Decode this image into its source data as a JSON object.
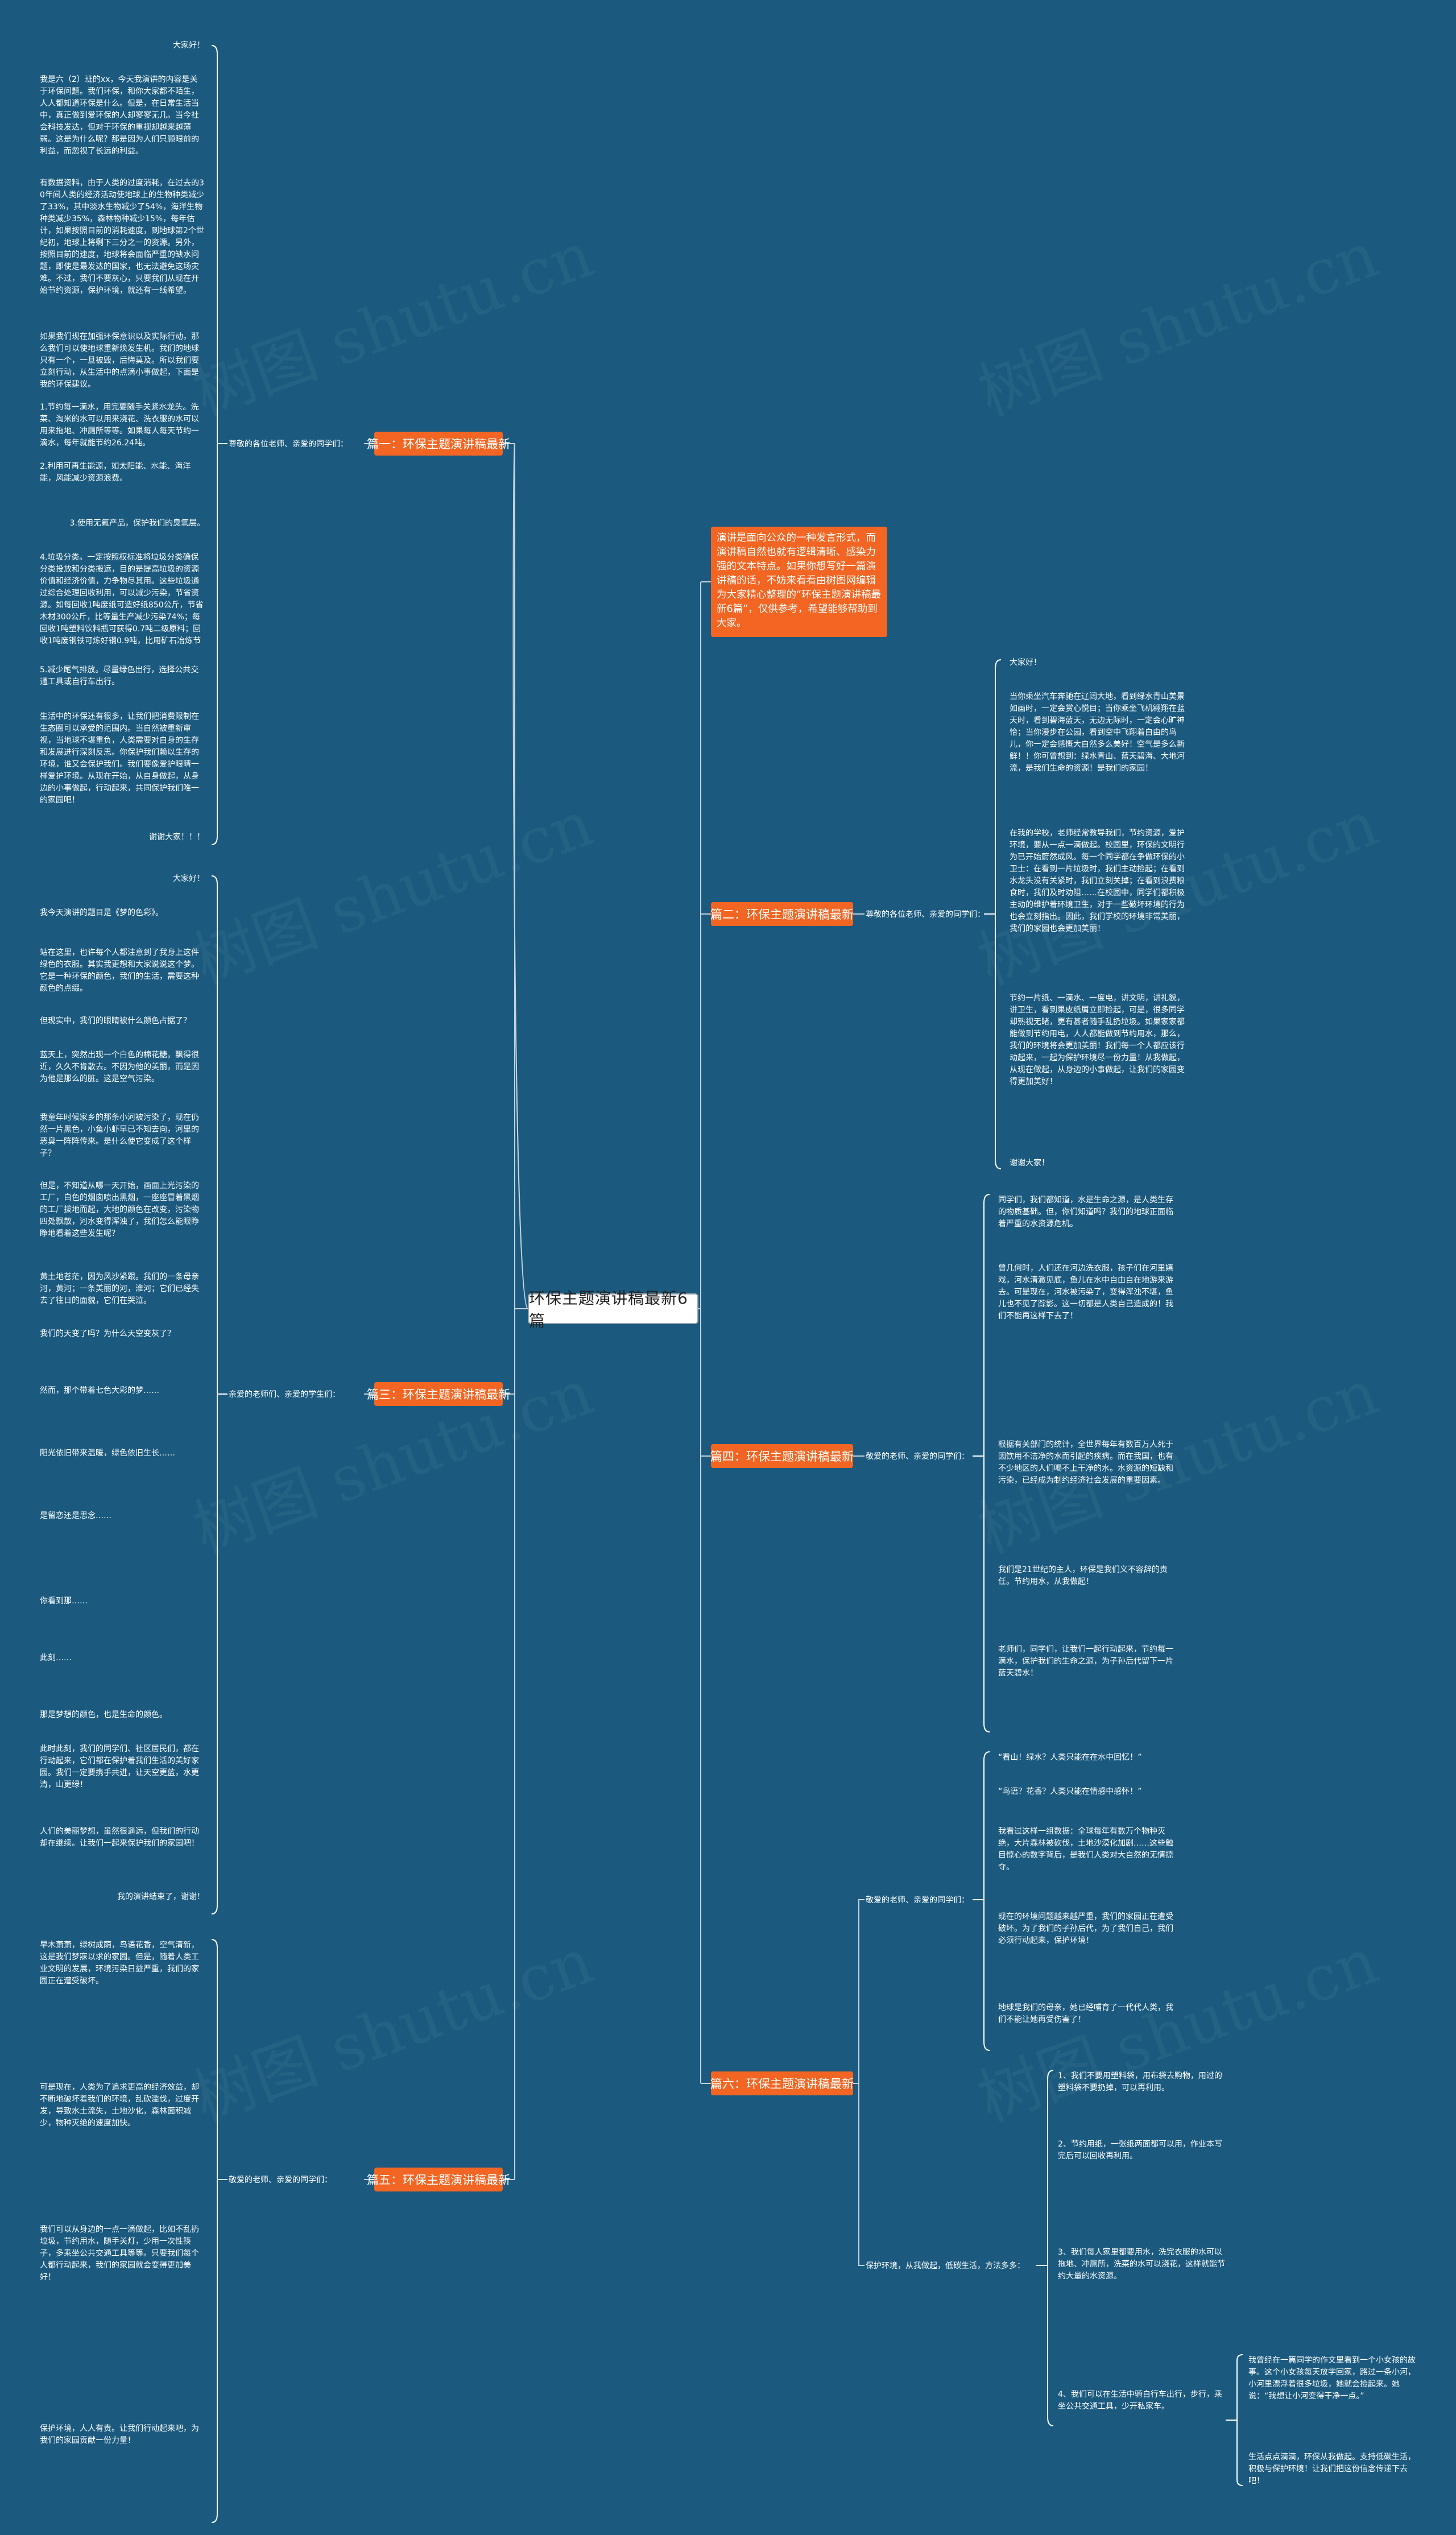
{
  "root": "环保主题演讲稿最新6篇",
  "summary": "演讲是面向公众的一种发言形式，而演讲稿自然也就有逻辑清晰、感染力强的文本特点。如果你想写好一篇演讲稿的话，不妨来看看由树图网编辑为大家精心整理的“环保主题演讲稿最新6篇”，仅供参考，希望能够帮助到大家。",
  "branches": {
    "b1": {
      "title": "篇一：环保主题演讲稿最新",
      "label": "尊敬的各位老师、亲爱的同学们：",
      "paras": [
        "大家好！",
        "我是六（2）班的xx，今天我演讲的内容是关于环保问题。我们环保，和你大家都不陌生，人人都知道环保是什么。但是，在日常生活当中，真正做到爱环保的人却寥寥无几。当今社会科技发达，但对于环保的重视却越来越薄弱。这是为什么呢？那是因为人们只顾眼前的利益，而忽视了长远的利益。",
        "有数据资料，由于人类的过度消耗，在过去的30年间人类的经济活动使地球上的生物种类减少了33%，其中淡水生物减少了54%，海洋生物种类减少35%，森林物种减少15%，每年估计，如果按照目前的消耗速度，到地球第2个世纪初，地球上将剩下三分之一的资源。另外，按照目前的速度，地球将会面临严重的缺水问题，即使是最发达的国家，也无法避免这场灾难。不过，我们不要灰心，只要我们从现在开始节约资源，保护环境，就还有一线希望。",
        "如果我们现在加强环保意识以及实际行动，那么我们可以使地球重新焕发生机。我们的地球只有一个，一旦被毁，后悔莫及。所以我们要立刻行动，从生活中的点滴小事做起，下面是我的环保建议。",
        "1.节约每一滴水，用完要随手关紧水龙头。洗菜、淘米的水可以用来浇花、洗衣服的水可以用来拖地、冲厕所等等。如果每人每天节约一滴水，每年就能节约26.24吨。",
        "2.利用可再生能源，如太阳能、水能、海洋能，风能减少资源浪费。",
        "3.使用无氟产品，保护我们的臭氧层。",
        "4.垃圾分类。一定按照权标准将垃圾分类确保分类投放和分类搬运，目的是提高垃圾的资源价值和经济价值，力争物尽其用。这些垃圾通过综合处理回收利用，可以减少污染，节省资源。如每回收1吨废纸可造好纸850公斤，节省木材300公斤，比等量生产减少污染74%；每回收1吨塑料饮料瓶可获得0.7吨二级原料；回收1吨废钢铁可炼好钢0.9吨，比用矿石冶炼节约成本47%，减少空气污染75%，减少97%的水污染和固体废物。",
        "5.减少尾气排放。尽量绿色出行，选择公共交通工具或自行车出行。",
        "生活中的环保还有很多，让我们把消费限制在生态圈可以承受的范围内。当自然被重新审视，当地球不堪重负，人类需要对自身的生存和发展进行深刻反思。你保护我们赖以生存的环境，谁又会保护我们。我们要像爱护眼睛一样爱护环境。从现在开始，从自身做起，从身边的小事做起，行动起来，共同保护我们唯一的家园吧！",
        "谢谢大家！！！"
      ]
    },
    "b2": {
      "title": "篇二：环保主题演讲稿最新",
      "label": "尊敬的各位老师、亲爱的同学们：",
      "paras": [
        "大家好！",
        "当你乘坐汽车奔驰在辽阔大地，看到绿水青山美景如画时，一定会赏心悦目；当你乘坐飞机翱翔在蓝天时，看到碧海蓝天，无边无际时，一定会心旷神怡；当你漫步在公园，看到空中飞翔着自由的鸟儿，你一定会感慨大自然多么美好！空气是多么新鲜！！你可曾想到：绿水青山、蓝天碧海、大地河流，是我们生命的资源！是我们的家园！",
        "在我的学校，老师经常教导我们，节约资源，爱护环境，要从一点一滴做起。校园里，环保的文明行为已开始蔚然成风。每一个同学都在争做环保的小卫士：在看到一片垃圾时，我们主动捡起；在看到水龙头没有关紧时，我们立刻关掉；在看到浪费粮食时，我们及时劝阻……在校园中，同学们都积极主动的维护着环境卫生，对于一些破坏环境的行为也会立刻指出。因此，我们学校的环境非常美丽，我们的家园也会更加美丽！",
        "节约一片纸、一滴水、一度电，讲文明，讲礼貌，讲卫生，看到果皮纸屑立即捡起，可是，很多同学却熟视无睹，更有甚者随手乱扔垃圾。如果家家都能做到节约用电，人人都能做到节约用水，那么，我们的环境将会更加美丽！我们每一个人都应该行动起来，一起为保护环境尽一份力量！从我做起，从现在做起，从身边的小事做起，让我们的家园变得更加美好！",
        "谢谢大家！"
      ]
    },
    "b3": {
      "title": "篇三：环保主题演讲稿最新",
      "label": "亲爱的老师们、亲爱的学生们：",
      "paras": [
        "大家好！",
        "我今天演讲的题目是《梦的色彩》。",
        "站在这里，也许每个人都注意到了我身上这件绿色的衣服。其实我更想和大家说说这个梦。它是一种环保的颜色，我们的生活，需要这种颜色的点缀。",
        "但现实中，我们的眼睛被什么颜色占据了？",
        "蓝天上，突然出现一个白色的棉花糖，飘得很近，久久不肯散去。不因为他的美丽，而是因为他是那么的脏。这是空气污染。",
        "我童年时候家乡的那条小河被污染了，现在仍然一片黑色，小鱼小虾早已不知去向，河里的恶臭一阵阵传来。是什么使它变成了这个样子？",
        "但是，不知道从哪一天开始，画面上光污染的工厂，白色的烟囱喷出黑烟，一座座冒着黑烟的工厂拔地而起，大地的颜色在改变，污染物四处飘散，河水变得浑浊了，我们怎么能眼睁睁地看着这些发生呢？",
        "黄土地苍茫，因为风沙紧跟。我们的一条母亲河，黄河；一条美丽的河，淮河；它们已经失去了往日的面貌，它们在哭泣。",
        "我们的天变了吗？为什么天空变灰了？",
        "然而，那个带着七色大彩的梦……",
        "阳光依旧带来温暖，绿色依旧生长……",
        "是留恋还是思念……",
        "你看到那……",
        "此刻……",
        "那是梦想的颜色，也是生命的颜色。",
        "此时此刻，我们的同学们、社区居民们，都在行动起来，它们都在保护着我们生活的美好家园。我们一定要携手共进，让天空更蓝，水更清，山更绿！",
        "人们的美丽梦想，虽然很遥远，但我们的行动却在继续。让我们一起来保护我们的家园吧！",
        "我的演讲结束了，谢谢！"
      ]
    },
    "b4": {
      "title": "篇四：环保主题演讲稿最新",
      "label": "敬爱的老师、亲爱的同学们：",
      "paras": [
        "同学们，我们都知道，水是生命之源，是人类生存的物质基础。但，你们知道吗？我们的地球正面临着严重的水资源危机。",
        "曾几何时，人们还在河边洗衣服，孩子们在河里嬉戏，河水清澈见底，鱼儿在水中自由自在地游来游去。可是现在，河水被污染了，变得浑浊不堪，鱼儿也不见了踪影。这一切都是人类自己造成的！我们不能再这样下去了！",
        "根据有关部门的统计，全世界每年有数百万人死于因饮用不洁净的水而引起的疾病。而在我国，也有不少地区的人们喝不上干净的水。水资源的短缺和污染，已经成为制约经济社会发展的重要因素。",
        "我们是21世纪的主人，环保是我们义不容辞的责任。节约用水，从我做起！",
        "老师们，同学们，让我们一起行动起来，节约每一滴水，保护我们的生命之源，为子孙后代留下一片蓝天碧水！"
      ]
    },
    "b5": {
      "title": "篇五：环保主题演讲稿最新",
      "label": "敬爱的老师、亲爱的同学们：",
      "paras": [
        "早木萧萧，绿树成荫，鸟语花香，空气清新，这是我们梦寐以求的家园。但是，随着人类工业文明的发展，环境污染日益严重，我们的家园正在遭受破坏。",
        "可是现在，人类为了追求更高的经济效益，却不断地破坏着我们的环境，乱砍滥伐，过度开发，导致水土流失，土地沙化，森林面积减少，物种灭绝的速度加快。",
        "我们可以从身边的一点一滴做起，比如不乱扔垃圾，节约用水，随手关灯，少用一次性筷子，多乘坐公共交通工具等等。只要我们每个人都行动起来，我们的家园就会变得更加美好！",
        "保护环境，人人有责。让我们行动起来吧，为我们的家园贡献一份力量！"
      ]
    },
    "b6": {
      "title": "篇六：环保主题演讲稿最新",
      "label": "敬爱的老师、亲爱的同学们：",
      "sub_label": "保护环境，从我做起，低碳生活，方法多多：",
      "paras": [
        "“看山！绿水？人类只能在在水中回忆！”",
        "“鸟语？花香？人类只能在情感中感怀！”",
        "我看过这样一组数据：全球每年有数万个物种灭绝，大片森林被砍伐，土地沙漠化加剧……这些触目惊心的数字背后，是我们人类对大自然的无情掠夺。",
        "现在的环境问题越来越严重，我们的家园正在遭受破坏。为了我们的子孙后代，为了我们自己，我们必须行动起来，保护环境！",
        "地球是我们的母亲，她已经哺育了一代代人类，我们不能让她再受伤害了！"
      ],
      "tips": [
        "1、我们不要用塑料袋，用布袋去购物，用过的塑料袋不要扔掉，可以再利用。",
        "2、节约用纸，一张纸两面都可以用，作业本写完后可以回收再利用。",
        "3、我们每人家里都要用水，洗完衣服的水可以拖地、冲厕所，洗菜的水可以浇花，这样就能节约大量的水资源。",
        "4、我们可以在生活中骑自行车出行，步行，乘坐公共交通工具，少开私家车。"
      ],
      "end_paras": [
        "我曾经在一篇同学的作文里看到一个小女孩的故事。这个小女孩每天放学回家，路过一条小河，小河里漂浮着很多垃圾，她就会捡起来。她说：“我想让小河变得干净一点。”",
        "生活点点滴滴，环保从我做起。支持低碳生活，积极与保护环境！让我们把这份信念传递下去吧！"
      ]
    }
  }
}
